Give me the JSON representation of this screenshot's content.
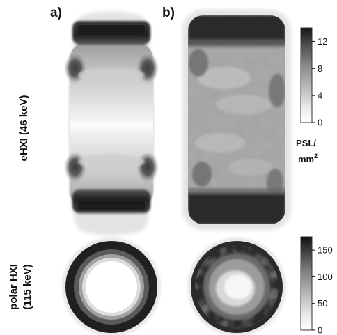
{
  "panels": {
    "a": {
      "label": "a)"
    },
    "b": {
      "label": "b)"
    }
  },
  "rows": {
    "top": {
      "label": "eHXI (46 keV)"
    },
    "bottom": {
      "label_line1": "polar HXI",
      "label_line2": "(115 keV)"
    }
  },
  "colorbars": {
    "top": {
      "ticks": [
        "0",
        "4",
        "8",
        "12"
      ],
      "tick_values": [
        0,
        4,
        8,
        12
      ],
      "range": [
        0,
        14
      ],
      "unit_line1": "PSL/",
      "unit_line2_base": "mm",
      "unit_line2_sup": "2"
    },
    "bottom": {
      "ticks": [
        "0",
        "50",
        "100",
        "150"
      ],
      "tick_values": [
        0,
        50,
        100,
        150
      ],
      "range": [
        0,
        175
      ]
    }
  },
  "colors": {
    "background": "#ffffff",
    "text": "#111111",
    "colormap": "grayscale (white = low, black = high)"
  }
}
